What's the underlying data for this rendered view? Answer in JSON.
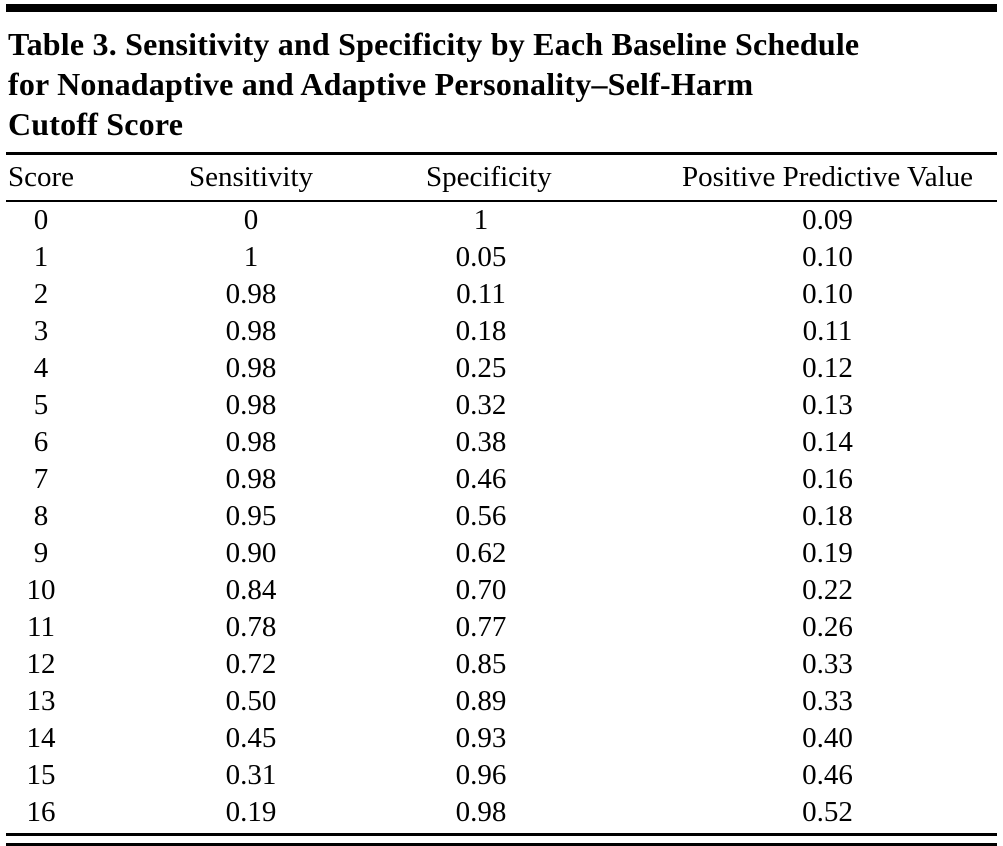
{
  "title_lines": [
    "Table 3. Sensitivity and Specificity by Each Baseline Schedule",
    "for Nonadaptive and Adaptive Personality–Self-Harm",
    "Cutoff Score"
  ],
  "table": {
    "columns": [
      "Score",
      "Sensitivity",
      "Specificity",
      "Positive Predictive Value"
    ],
    "rows": [
      [
        "0",
        "0",
        "1",
        "0.09"
      ],
      [
        "1",
        "1",
        "0.05",
        "0.10"
      ],
      [
        "2",
        "0.98",
        "0.11",
        "0.10"
      ],
      [
        "3",
        "0.98",
        "0.18",
        "0.11"
      ],
      [
        "4",
        "0.98",
        "0.25",
        "0.12"
      ],
      [
        "5",
        "0.98",
        "0.32",
        "0.13"
      ],
      [
        "6",
        "0.98",
        "0.38",
        "0.14"
      ],
      [
        "7",
        "0.98",
        "0.46",
        "0.16"
      ],
      [
        "8",
        "0.95",
        "0.56",
        "0.18"
      ],
      [
        "9",
        "0.90",
        "0.62",
        "0.19"
      ],
      [
        "10",
        "0.84",
        "0.70",
        "0.22"
      ],
      [
        "11",
        "0.78",
        "0.77",
        "0.26"
      ],
      [
        "12",
        "0.72",
        "0.85",
        "0.33"
      ],
      [
        "13",
        "0.50",
        "0.89",
        "0.33"
      ],
      [
        "14",
        "0.45",
        "0.93",
        "0.40"
      ],
      [
        "15",
        "0.31",
        "0.96",
        "0.46"
      ],
      [
        "16",
        "0.19",
        "0.98",
        "0.52"
      ]
    ]
  }
}
